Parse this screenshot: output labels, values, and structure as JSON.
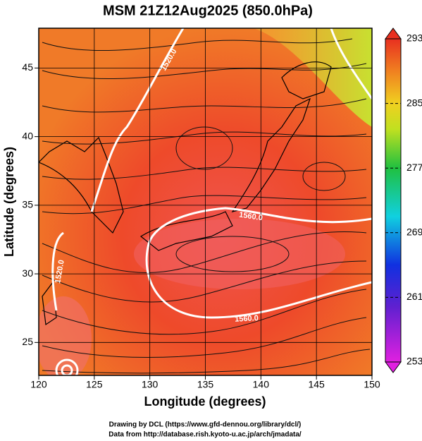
{
  "title": "MSM 21Z12Aug2025 (850.0hPa)",
  "x_label": "Longitude (degrees)",
  "y_label": "Latitude  (degrees)",
  "xlim": [
    120,
    150
  ],
  "xticks": [
    120,
    125,
    130,
    135,
    140,
    145,
    150
  ],
  "ylim": [
    22.6,
    47.9
  ],
  "yticks": [
    25,
    30,
    35,
    40,
    45
  ],
  "colorbar": {
    "lim": [
      253,
      293
    ],
    "ticks": [
      253,
      261,
      269,
      277,
      285,
      293
    ]
  },
  "contour_labels": [
    "1520.0",
    "1560.0",
    "1520.0",
    "1560.0"
  ],
  "footer": [
    "Drawing by DCL (https://www.gfd-dennou.org/library/dcl/)",
    "Data from http://database.rish.kyoto-u.ac.jp/arch/jmadata/"
  ]
}
